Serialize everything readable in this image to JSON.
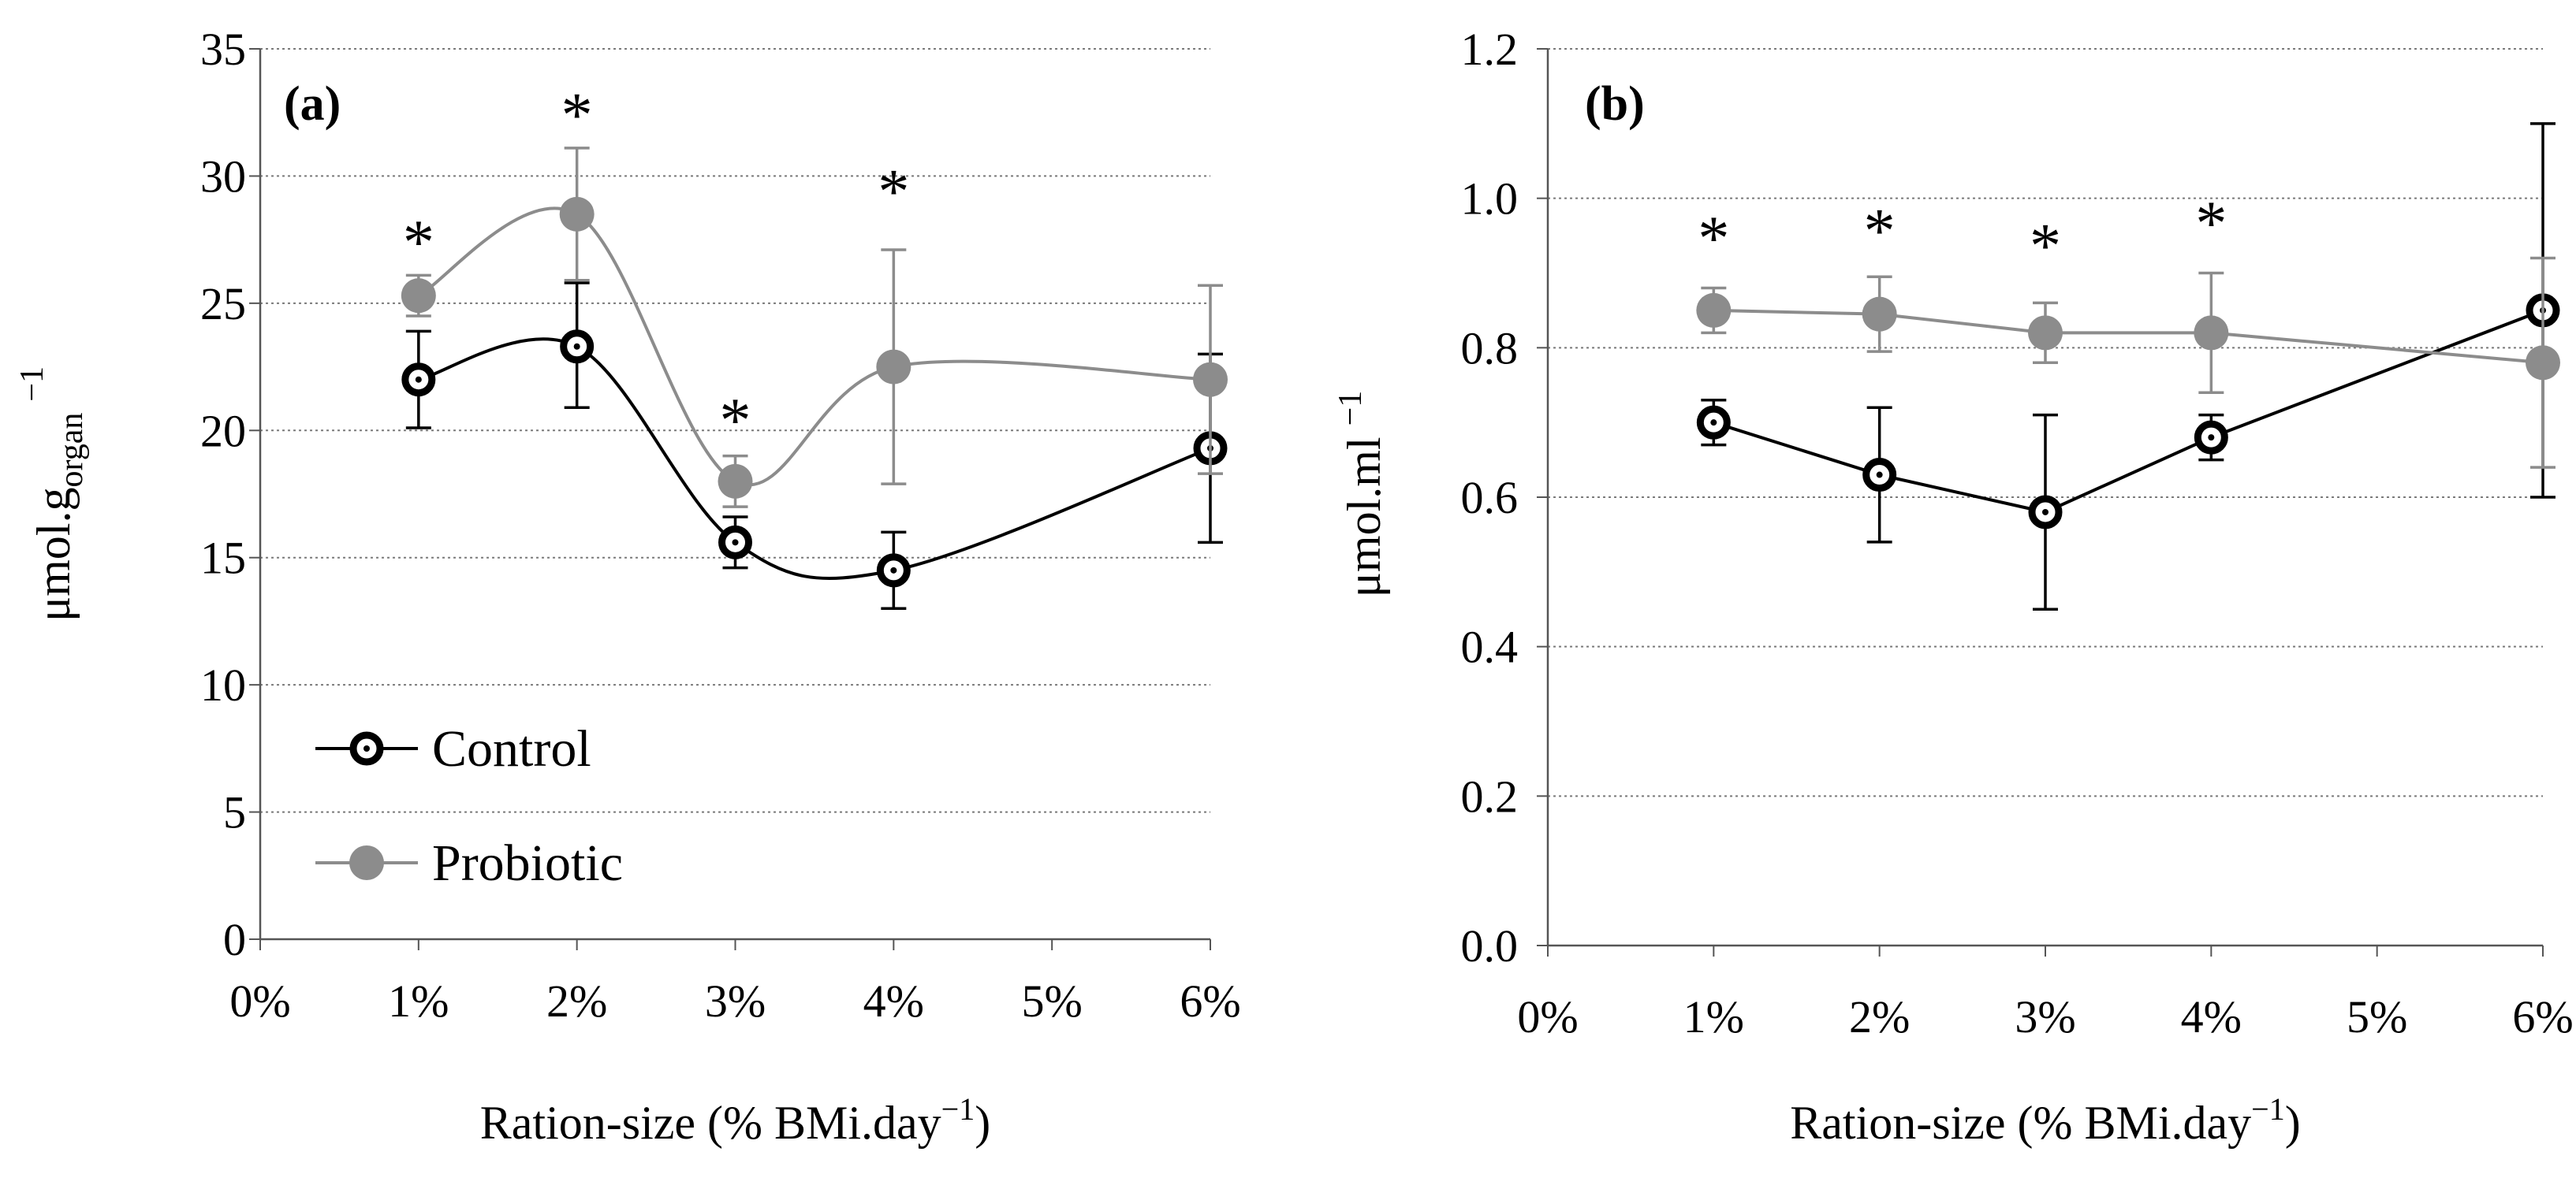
{
  "chart_data": [
    {
      "type": "line",
      "panel_label": "(a)",
      "ylabel": "μmol.g",
      "ylabel_subscript": "organ",
      "ylabel_superscript": "−1",
      "xlabel": "Ration-size (% BMi.day",
      "xlabel_superscript": "−1",
      "xlabel_tail": ")",
      "x_tick_labels": [
        "0%",
        "1%",
        "2%",
        "3%",
        "4%",
        "5%",
        "6%"
      ],
      "x_tick_values": [
        0,
        1,
        2,
        3,
        4,
        5,
        6
      ],
      "xlim": [
        0,
        6
      ],
      "ylim": [
        0,
        35
      ],
      "y_tick_values": [
        0,
        5,
        10,
        15,
        20,
        25,
        30,
        35
      ],
      "y_tick_labels": [
        "0",
        "5",
        "10",
        "15",
        "20",
        "25",
        "30",
        "35"
      ],
      "grid": "horizontal dotted",
      "legend": {
        "position": "bottom-left",
        "entries": [
          "Control",
          "Probiotic"
        ]
      },
      "significance": [
        {
          "x": 1,
          "y": 27.5,
          "label": "*"
        },
        {
          "x": 2,
          "y": 32.5,
          "label": "*"
        },
        {
          "x": 3,
          "y": 20.5,
          "label": "*"
        },
        {
          "x": 4,
          "y": 29.5,
          "label": "*"
        }
      ],
      "series": [
        {
          "name": "Control",
          "color": "#000000",
          "marker": "ring",
          "x": [
            1,
            2,
            3,
            4,
            6
          ],
          "y": [
            22.0,
            23.3,
            15.6,
            14.5,
            19.3
          ],
          "err_upper": [
            23.9,
            25.8,
            16.6,
            16.0,
            23.0
          ],
          "err_lower": [
            20.1,
            20.9,
            14.6,
            13.0,
            15.6
          ]
        },
        {
          "name": "Probiotic",
          "color": "#8c8c8c",
          "marker": "disc",
          "x": [
            1,
            2,
            3,
            4,
            6
          ],
          "y": [
            25.3,
            28.5,
            18.0,
            22.5,
            22.0
          ],
          "err_upper": [
            26.1,
            31.1,
            19.0,
            27.1,
            25.7
          ],
          "err_lower": [
            24.5,
            25.9,
            17.0,
            17.9,
            18.3
          ]
        }
      ]
    },
    {
      "type": "line",
      "panel_label": "(b)",
      "ylabel": "μmol.ml",
      "ylabel_superscript": "−1",
      "xlabel": "Ration-size (% BMi.day",
      "xlabel_superscript": "−1",
      "xlabel_tail": ")",
      "x_tick_labels": [
        "0%",
        "1%",
        "2%",
        "3%",
        "4%",
        "5%",
        "6%"
      ],
      "x_tick_values": [
        0,
        1,
        2,
        3,
        4,
        5,
        6
      ],
      "xlim": [
        0,
        6
      ],
      "ylim": [
        0,
        1.2
      ],
      "y_tick_values": [
        0,
        0.2,
        0.4,
        0.6,
        0.8,
        1.0,
        1.2
      ],
      "y_tick_labels": [
        "0.0",
        "0.2",
        "0.4",
        "0.6",
        "0.8",
        "1.0",
        "1.2"
      ],
      "grid": "horizontal dotted",
      "significance": [
        {
          "x": 1,
          "y": 0.95,
          "label": "*"
        },
        {
          "x": 2,
          "y": 0.96,
          "label": "*"
        },
        {
          "x": 3,
          "y": 0.94,
          "label": "*"
        },
        {
          "x": 4,
          "y": 0.97,
          "label": "*"
        }
      ],
      "series": [
        {
          "name": "Control",
          "color": "#000000",
          "marker": "ring",
          "x": [
            1,
            2,
            3,
            4,
            6
          ],
          "y": [
            0.7,
            0.63,
            0.58,
            0.68,
            0.85
          ],
          "err_upper": [
            0.73,
            0.72,
            0.71,
            0.71,
            1.1
          ],
          "err_lower": [
            0.67,
            0.54,
            0.45,
            0.65,
            0.6
          ]
        },
        {
          "name": "Probiotic",
          "color": "#8c8c8c",
          "marker": "disc",
          "x": [
            1,
            2,
            3,
            4,
            6
          ],
          "y": [
            0.85,
            0.845,
            0.82,
            0.82,
            0.78
          ],
          "err_upper": [
            0.88,
            0.895,
            0.86,
            0.9,
            0.92
          ],
          "err_lower": [
            0.82,
            0.795,
            0.78,
            0.74,
            0.64
          ]
        }
      ]
    }
  ]
}
